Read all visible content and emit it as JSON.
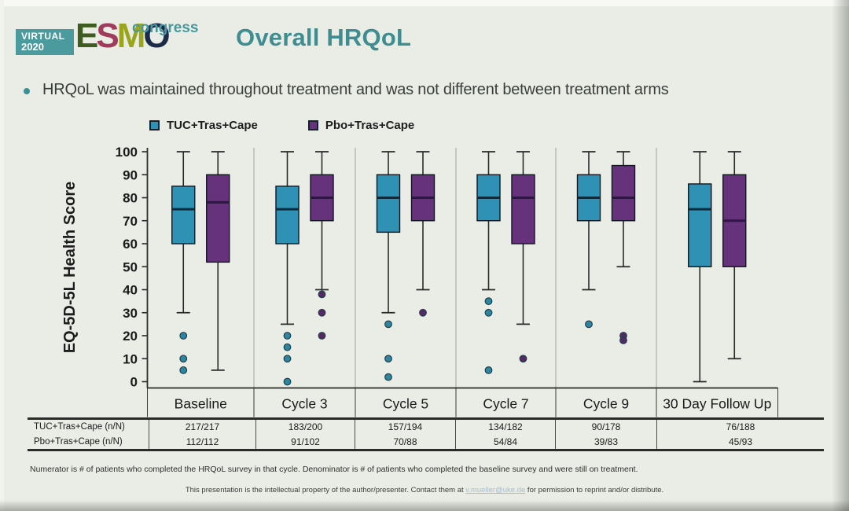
{
  "header": {
    "logo": {
      "virtual_line1": "VIRTUAL",
      "virtual_line2": "2020",
      "esmo_letters": [
        "E",
        "S",
        "M",
        "O"
      ],
      "congress": "congress",
      "teal": "#4a9a9e"
    },
    "title": "Overall HRQoL",
    "title_color": "#3f8d90"
  },
  "bullet": {
    "text": "HRQoL was maintained throughout treatment and was not different between treatment arms"
  },
  "legend": [
    {
      "label": "TUC+Tras+Cape",
      "color": "#2f92b5"
    },
    {
      "label": "Pbo+Tras+Cape",
      "color": "#66327c"
    }
  ],
  "chart_data": {
    "type": "boxplot",
    "ylabel": "EQ-5D-5L Health Score",
    "ylim": [
      0,
      100
    ],
    "yticks": [
      0,
      10,
      20,
      30,
      40,
      50,
      60,
      70,
      80,
      90,
      100
    ],
    "grid": "panel-separators-only",
    "legend_position": "top",
    "categories": [
      "Baseline",
      "Cycle 3",
      "Cycle 5",
      "Cycle 7",
      "Cycle 9",
      "30 Day Follow Up"
    ],
    "series": [
      {
        "name": "TUC+Tras+Cape",
        "color": "#2f92b5",
        "median_color": "#0e2b3d",
        "dot_color": "#2d85a0",
        "boxes": [
          {
            "whisker_low": 30,
            "q1": 60,
            "median": 75,
            "q3": 85,
            "whisker_high": 100,
            "outliers": [
              20,
              10,
              5
            ]
          },
          {
            "whisker_low": 25,
            "q1": 60,
            "median": 75,
            "q3": 85,
            "whisker_high": 100,
            "outliers": [
              20,
              15,
              10,
              0
            ]
          },
          {
            "whisker_low": 30,
            "q1": 65,
            "median": 80,
            "q3": 90,
            "whisker_high": 100,
            "outliers": [
              25,
              10,
              2
            ]
          },
          {
            "whisker_low": 40,
            "q1": 70,
            "median": 80,
            "q3": 90,
            "whisker_high": 100,
            "outliers": [
              35,
              30,
              5
            ]
          },
          {
            "whisker_low": 40,
            "q1": 70,
            "median": 80,
            "q3": 90,
            "whisker_high": 100,
            "outliers": [
              25
            ]
          },
          {
            "whisker_low": 0,
            "q1": 50,
            "median": 75,
            "q3": 86,
            "whisker_high": 100,
            "outliers": []
          }
        ]
      },
      {
        "name": "Pbo+Tras+Cape",
        "color": "#66327c",
        "median_color": "#2e1543",
        "dot_color": "#532a66",
        "boxes": [
          {
            "whisker_low": 5,
            "q1": 52,
            "median": 78,
            "q3": 90,
            "whisker_high": 100,
            "outliers": []
          },
          {
            "whisker_low": 40,
            "q1": 70,
            "median": 80,
            "q3": 90,
            "whisker_high": 100,
            "outliers": [
              38,
              30,
              20
            ]
          },
          {
            "whisker_low": 40,
            "q1": 70,
            "median": 80,
            "q3": 90,
            "whisker_high": 100,
            "outliers": [
              30
            ]
          },
          {
            "whisker_low": 25,
            "q1": 60,
            "median": 80,
            "q3": 90,
            "whisker_high": 100,
            "outliers": [
              10
            ]
          },
          {
            "whisker_low": 50,
            "q1": 70,
            "median": 80,
            "q3": 94,
            "whisker_high": 100,
            "outliers": [
              20,
              18
            ]
          },
          {
            "whisker_low": 10,
            "q1": 50,
            "median": 70,
            "q3": 90,
            "whisker_high": 100,
            "outliers": []
          }
        ]
      }
    ]
  },
  "table": {
    "rows": [
      {
        "label": "TUC+Tras+Cape (n/N)",
        "values": [
          "217/217",
          "183/200",
          "157/194",
          "134/182",
          "90/178",
          "76/188"
        ]
      },
      {
        "label": "Pbo+Tras+Cape (n/N)",
        "values": [
          "112/112",
          "91/102",
          "70/88",
          "54/84",
          "39/83",
          "45/93"
        ]
      }
    ]
  },
  "footnote": "Numerator is # of patients who completed the HRQoL survey in that cycle. Denominator is # of patients who completed the baseline survey and were still on treatment.",
  "footer": {
    "pre": "This presentation is the intellectual property of the author/presenter. Contact them at ",
    "link": "v.mueller@uke.de",
    "post": " for permission to reprint and/or distribute."
  }
}
